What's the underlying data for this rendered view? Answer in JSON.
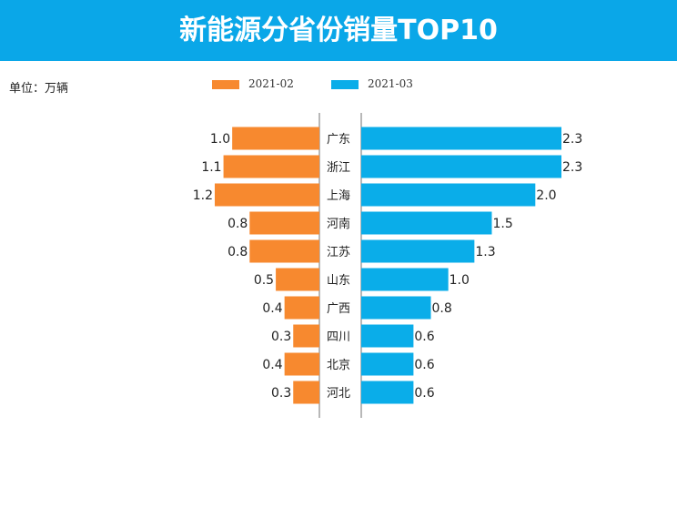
{
  "title": "新能源分省份销量TOP10",
  "unit_label": "单位：万辆",
  "colors": {
    "banner": "#0aa7e8",
    "series_left": "#f7892f",
    "series_right": "#0aade9"
  },
  "chart_data": {
    "type": "bar",
    "orientation": "horizontal-butterfly",
    "title": "新能源分省份销量TOP10",
    "unit": "单位：万辆",
    "legend_position": "top-center",
    "categories": [
      "广东",
      "浙江",
      "上海",
      "河南",
      "江苏",
      "山东",
      "广西",
      "四川",
      "北京",
      "河北"
    ],
    "series": [
      {
        "name": "2021-02",
        "color": "#f7892f",
        "values": [
          1.0,
          1.1,
          1.2,
          0.8,
          0.8,
          0.5,
          0.4,
          0.3,
          0.4,
          0.3
        ]
      },
      {
        "name": "2021-03",
        "color": "#0aade9",
        "values": [
          2.3,
          2.3,
          2.0,
          1.5,
          1.3,
          1.0,
          0.8,
          0.6,
          0.6,
          0.6
        ]
      }
    ],
    "xlim": [
      0,
      2.3
    ],
    "grid": false
  }
}
